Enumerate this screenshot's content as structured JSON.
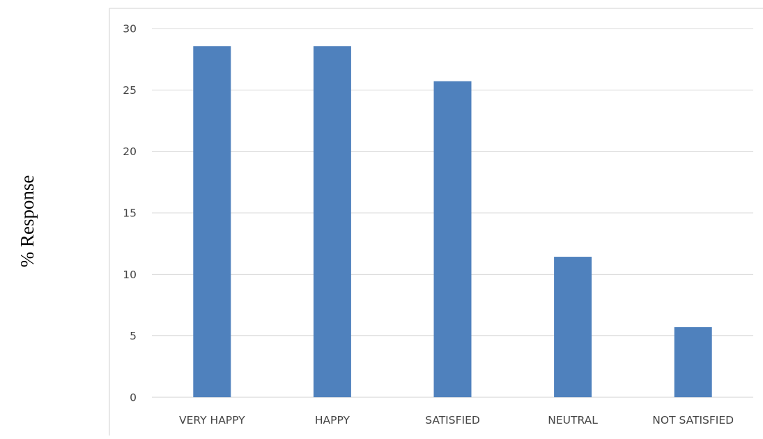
{
  "chart_data": {
    "type": "bar",
    "title": "",
    "xlabel": "",
    "ylabel": "% Response",
    "categories": [
      "VERY HAPPY",
      "HAPPY",
      "SATISFIED",
      "NEUTRAL",
      "NOT SATISFIED"
    ],
    "values": [
      28.57,
      28.57,
      25.71,
      11.43,
      5.71
    ],
    "ylim": [
      0,
      30
    ],
    "yticks": [
      0,
      5,
      10,
      15,
      20,
      25,
      30
    ],
    "grid": true,
    "legend": "none",
    "colors": {
      "bar": "#4F81BD",
      "grid": "#D9D9D9",
      "frame": "#D9D9D9",
      "axis": "#D9D9D9"
    }
  }
}
